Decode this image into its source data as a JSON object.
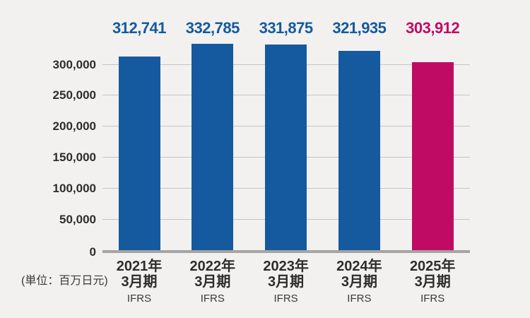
{
  "unit": {
    "label": "(単位：百万日元)"
  },
  "chart_data": {
    "type": "bar",
    "title": "",
    "xlabel": "",
    "ylabel": "(単位：百万日元)",
    "categories": [
      {
        "year": "2021年",
        "period": "3月期",
        "note": "IFRS"
      },
      {
        "year": "2022年",
        "period": "3月期",
        "note": "IFRS"
      },
      {
        "year": "2023年",
        "period": "3月期",
        "note": "IFRS"
      },
      {
        "year": "2024年",
        "period": "3月期",
        "note": "IFRS"
      },
      {
        "year": "2025年",
        "period": "3月期",
        "note": "IFRS"
      }
    ],
    "values": [
      312741,
      332785,
      331875,
      321935,
      303912
    ],
    "value_labels": [
      "312,741",
      "332,785",
      "331,875",
      "321,935",
      "303,912"
    ],
    "bar_colors": [
      "#155a9e",
      "#155a9e",
      "#155a9e",
      "#155a9e",
      "#c00b64"
    ],
    "label_colors": [
      "#155a9e",
      "#155a9e",
      "#155a9e",
      "#155a9e",
      "#c00b64"
    ],
    "yticks": [
      0,
      50000,
      100000,
      150000,
      200000,
      250000,
      300000
    ],
    "ytick_labels": [
      "0",
      "50,000",
      "100,000",
      "150,000",
      "200,000",
      "250,000",
      "300,000"
    ],
    "ylim": [
      0,
      300000
    ],
    "grid": true,
    "legend": false,
    "colors": {
      "background": "#f2f1ef",
      "gridline": "#c6c5c3",
      "axis_line": "#a5a4a2",
      "tick_text": "#2e2d2b"
    }
  }
}
